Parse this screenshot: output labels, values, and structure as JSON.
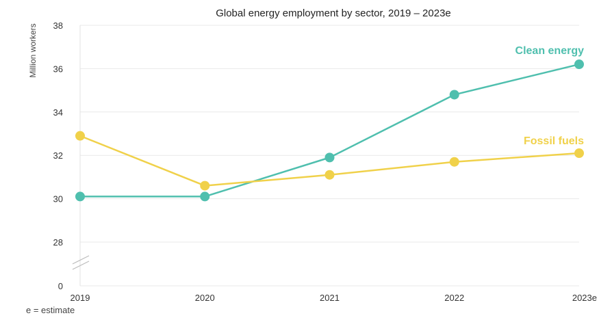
{
  "chart_data": {
    "type": "line",
    "title": "Global energy employment by sector, 2019 – 2023e",
    "ylabel": "Million workers",
    "xlabel": "",
    "x": [
      "2019",
      "2020",
      "2021",
      "2022",
      "2023e"
    ],
    "y_ticks": [
      "0",
      "28",
      "30",
      "32",
      "34",
      "36",
      "38"
    ],
    "ylim": [
      28,
      38
    ],
    "axis_break": true,
    "grid": true,
    "series": [
      {
        "name": "Clean energy",
        "values": [
          30.1,
          30.1,
          31.9,
          34.8,
          36.2
        ],
        "color": "#4fbfae"
      },
      {
        "name": "Fossil fuels",
        "values": [
          32.9,
          30.6,
          31.1,
          31.7,
          32.1
        ],
        "color": "#f0d14a"
      }
    ],
    "footnote": "e = estimate"
  }
}
